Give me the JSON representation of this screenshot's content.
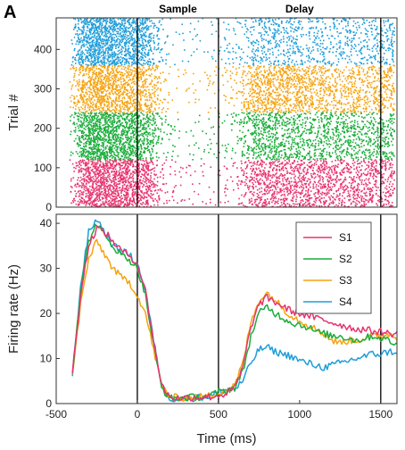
{
  "panel_label": "A",
  "epochs": [
    {
      "label": "Sample",
      "start": 0,
      "end": 500
    },
    {
      "label": "Delay",
      "start": 500,
      "end": 1500
    }
  ],
  "xlabel": "Time (ms)",
  "x_tick_labels": [
    "-500",
    "0",
    "500",
    "1000",
    "1500"
  ],
  "raster_ylabel": "Trial #",
  "raster_y_tick_labels": [
    "0",
    "100",
    "200",
    "300",
    "400"
  ],
  "rate_ylabel": "Firing rate (Hz)",
  "rate_y_tick_labels": [
    "0",
    "10",
    "20",
    "30",
    "40"
  ],
  "colors": {
    "S1": "#e8336f",
    "S2": "#1aad3a",
    "S3": "#f5a30f",
    "S4": "#1f9dd9",
    "event_line": "#000000"
  },
  "chart_data": [
    {
      "type": "scatter",
      "subtype": "raster",
      "xlim": [
        -500,
        1600
      ],
      "ylim": [
        0,
        480
      ],
      "ylabel": "Trial #",
      "event_lines_x": [
        0,
        500,
        1500
      ],
      "groups": [
        {
          "name": "S1",
          "trials": [
            0,
            120
          ]
        },
        {
          "name": "S2",
          "trials": [
            120,
            240
          ]
        },
        {
          "name": "S3",
          "trials": [
            240,
            360
          ]
        },
        {
          "name": "S4",
          "trials": [
            360,
            480
          ]
        }
      ]
    },
    {
      "type": "line",
      "xlim": [
        -500,
        1600
      ],
      "ylim": [
        0,
        42
      ],
      "xlabel": "Time (ms)",
      "ylabel": "Firing rate (Hz)",
      "legend_position": "top-right",
      "event_lines_x": [
        0,
        500,
        1500
      ],
      "x": [
        -400,
        -350,
        -300,
        -250,
        -200,
        -150,
        -100,
        -50,
        0,
        50,
        100,
        150,
        200,
        250,
        300,
        350,
        400,
        450,
        500,
        550,
        600,
        650,
        700,
        750,
        800,
        850,
        900,
        950,
        1000,
        1050,
        1100,
        1150,
        1200,
        1250,
        1300,
        1350,
        1400,
        1450,
        1500,
        1550,
        1600
      ],
      "series": [
        {
          "name": "S1",
          "values": [
            7,
            24,
            35,
            39,
            38,
            36,
            34,
            33,
            31,
            25,
            14,
            4,
            1.5,
            1.2,
            1.3,
            1.4,
            1.5,
            1.5,
            1.8,
            2.2,
            3.5,
            8,
            17,
            22,
            23.5,
            22.5,
            21.5,
            20.5,
            20,
            19.5,
            19,
            18.5,
            18,
            17.5,
            17,
            16.5,
            16.5,
            16,
            16,
            15.5,
            15.5
          ]
        },
        {
          "name": "S2",
          "values": [
            7,
            25,
            36,
            40,
            37,
            35,
            33,
            32,
            30,
            24,
            13,
            3.5,
            1.2,
            1.2,
            1.3,
            1.4,
            1.5,
            1.8,
            2.5,
            3,
            3.5,
            7,
            15,
            20,
            21.5,
            20,
            19,
            18,
            17.5,
            17,
            16,
            15.5,
            15,
            15,
            14.5,
            14,
            14.5,
            15,
            14.5,
            14,
            13
          ]
        },
        {
          "name": "S3",
          "values": [
            6,
            22,
            32,
            36,
            33,
            30,
            28,
            27,
            24,
            20,
            12,
            4,
            1.5,
            1.3,
            1.3,
            1.4,
            1.5,
            1.8,
            2.5,
            3,
            4,
            9,
            18,
            23,
            24.5,
            23,
            21,
            19.5,
            18.5,
            17.5,
            16.5,
            15.5,
            14,
            13.5,
            14,
            14,
            14.5,
            15,
            15,
            15.5,
            14.5
          ]
        },
        {
          "name": "S4",
          "values": [
            6,
            26,
            38,
            41,
            38,
            35,
            34,
            33,
            31,
            25,
            14,
            4,
            1.2,
            1.0,
            1.2,
            1.3,
            1.4,
            1.6,
            2.5,
            3,
            3.2,
            5,
            9,
            12,
            12.5,
            11.5,
            11,
            10.5,
            9.5,
            9,
            8.5,
            8,
            8.5,
            9,
            9.5,
            10,
            10.5,
            11,
            11,
            11.5,
            11.5
          ]
        }
      ],
      "tick_labels_x": [
        "-500",
        "0",
        "500",
        "1000",
        "1500"
      ],
      "tick_labels_y": [
        "0",
        "10",
        "20",
        "30",
        "40"
      ]
    }
  ]
}
